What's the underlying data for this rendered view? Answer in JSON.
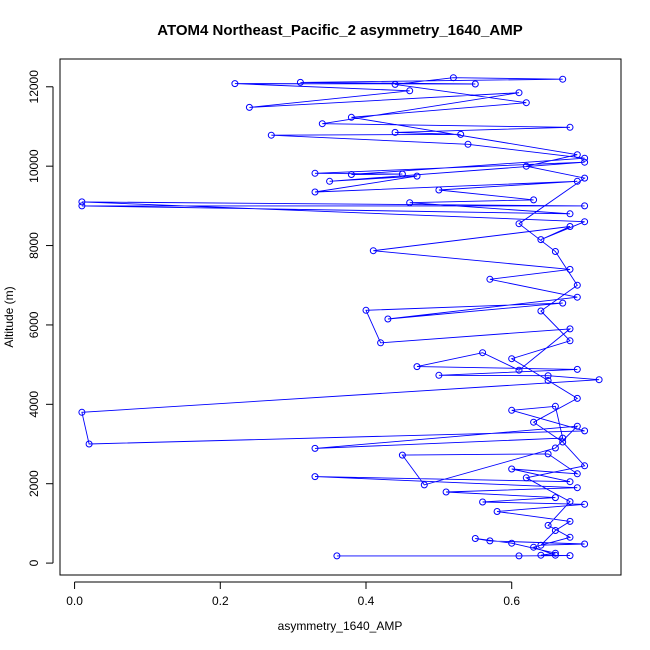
{
  "chart_data": {
    "type": "line",
    "title": "ATOM4 Northeast_Pacific_2 asymmetry_1640_AMP",
    "xlabel": "asymmetry_1640_AMP",
    "ylabel": "Altitude (m)",
    "xlim": [
      -0.02,
      0.75
    ],
    "ylim": [
      -300,
      12700
    ],
    "x_ticks": [
      0.0,
      0.2,
      0.4,
      0.6
    ],
    "x_tick_labels": [
      "0.0",
      "0.2",
      "0.4",
      "0.6"
    ],
    "y_ticks": [
      0,
      2000,
      4000,
      6000,
      8000,
      10000,
      12000
    ],
    "y_tick_labels": [
      "0",
      "2000",
      "4000",
      "6000",
      "8000",
      "10000",
      "12000"
    ],
    "grid": false,
    "marker": "open-circle",
    "color": "#0000ff",
    "series": [
      {
        "points": [
          [
            0.36,
            180
          ],
          [
            0.61,
            180
          ],
          [
            0.68,
            190
          ],
          [
            0.64,
            200
          ],
          [
            0.66,
            250
          ],
          [
            0.6,
            500
          ],
          [
            0.55,
            620
          ],
          [
            0.57,
            560
          ],
          [
            0.7,
            480
          ],
          [
            0.64,
            450
          ],
          [
            0.66,
            820
          ],
          [
            0.68,
            1050
          ],
          [
            0.58,
            1300
          ],
          [
            0.7,
            1480
          ],
          [
            0.56,
            1540
          ],
          [
            0.66,
            1650
          ],
          [
            0.51,
            1790
          ],
          [
            0.69,
            1900
          ],
          [
            0.33,
            2180
          ],
          [
            0.68,
            2050
          ],
          [
            0.6,
            2370
          ],
          [
            0.69,
            2250
          ],
          [
            0.65,
            2750
          ],
          [
            0.45,
            2720
          ],
          [
            0.48,
            1970
          ],
          [
            0.66,
            2900
          ],
          [
            0.69,
            3450
          ],
          [
            0.33,
            2890
          ],
          [
            0.67,
            3150
          ],
          [
            0.66,
            3950
          ],
          [
            0.6,
            3850
          ],
          [
            0.7,
            3330
          ],
          [
            0.02,
            3000
          ],
          [
            0.01,
            3800
          ],
          [
            0.72,
            4620
          ],
          [
            0.65,
            4720
          ],
          [
            0.5,
            4730
          ],
          [
            0.69,
            4880
          ],
          [
            0.47,
            4950
          ],
          [
            0.56,
            5300
          ],
          [
            0.61,
            4860
          ],
          [
            0.68,
            5900
          ],
          [
            0.42,
            5550
          ],
          [
            0.4,
            6370
          ],
          [
            0.67,
            6550
          ],
          [
            0.43,
            6150
          ],
          [
            0.69,
            6700
          ],
          [
            0.57,
            7150
          ],
          [
            0.68,
            7400
          ],
          [
            0.41,
            7870
          ],
          [
            0.68,
            8480
          ],
          [
            0.64,
            8150
          ],
          [
            0.7,
            8600
          ],
          [
            0.01,
            9100
          ],
          [
            0.7,
            9000
          ],
          [
            0.01,
            9000
          ],
          [
            0.68,
            8800
          ],
          [
            0.46,
            9080
          ],
          [
            0.63,
            9150
          ],
          [
            0.5,
            9400
          ],
          [
            0.69,
            9620
          ],
          [
            0.33,
            9350
          ],
          [
            0.47,
            9750
          ],
          [
            0.35,
            9620
          ],
          [
            0.7,
            10100
          ],
          [
            0.33,
            9820
          ],
          [
            0.45,
            9800
          ],
          [
            0.38,
            9790
          ],
          [
            0.7,
            10200
          ],
          [
            0.54,
            10550
          ],
          [
            0.27,
            10780
          ],
          [
            0.53,
            10800
          ],
          [
            0.44,
            10850
          ],
          [
            0.68,
            10980
          ],
          [
            0.34,
            11070
          ],
          [
            0.61,
            11850
          ],
          [
            0.24,
            11480
          ],
          [
            0.46,
            11900
          ],
          [
            0.22,
            12080
          ],
          [
            0.55,
            12070
          ],
          [
            0.31,
            12110
          ],
          [
            0.67,
            12190
          ],
          [
            0.52,
            12230
          ],
          [
            0.44,
            12060
          ],
          [
            0.62,
            11600
          ],
          [
            0.38,
            11230
          ],
          [
            0.69,
            10290
          ],
          [
            0.62,
            10000
          ],
          [
            0.7,
            9700
          ],
          [
            0.61,
            8550
          ],
          [
            0.66,
            7850
          ],
          [
            0.69,
            7000
          ],
          [
            0.64,
            6350
          ],
          [
            0.68,
            5600
          ],
          [
            0.6,
            5150
          ],
          [
            0.65,
            4600
          ],
          [
            0.69,
            4150
          ],
          [
            0.63,
            3550
          ],
          [
            0.67,
            3050
          ],
          [
            0.7,
            2450
          ],
          [
            0.62,
            2150
          ],
          [
            0.68,
            1550
          ],
          [
            0.65,
            950
          ],
          [
            0.68,
            650
          ],
          [
            0.63,
            400
          ],
          [
            0.66,
            200
          ]
        ]
      }
    ]
  }
}
